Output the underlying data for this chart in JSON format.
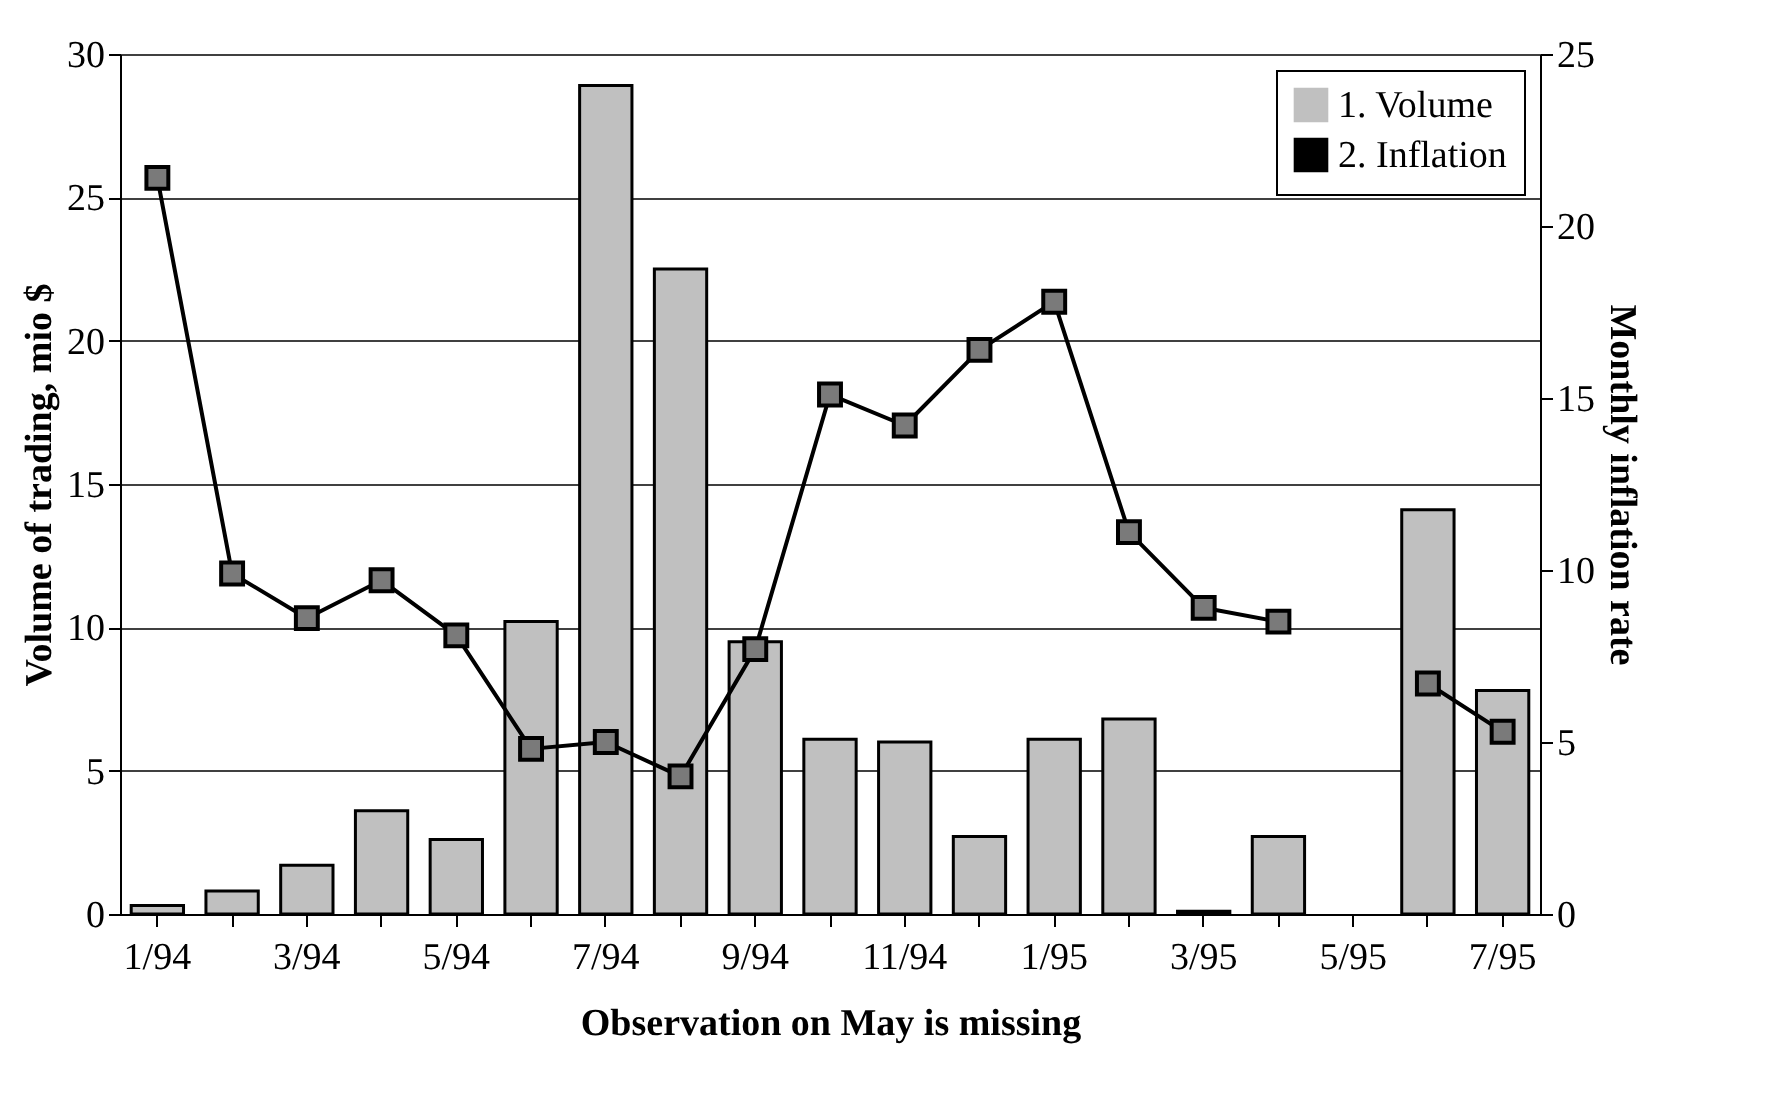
{
  "chart_data": {
    "type": "bar",
    "xlabel": "Observation on May is missing",
    "ylabel": "Volume of trading, mio $",
    "y2label": "Monthly inflation rate",
    "categories": [
      "1/94",
      null,
      "3/94",
      null,
      "5/94",
      null,
      "7/94",
      null,
      "9/94",
      null,
      "11/94",
      null,
      "1/95",
      null,
      "3/95",
      null,
      "5/95",
      null,
      "7/95"
    ],
    "series": [
      {
        "name": "1. Volume",
        "color": "#c0c0c0",
        "values": [
          0.3,
          0.8,
          1.7,
          3.6,
          2.6,
          10.2,
          28.9,
          22.5,
          9.5,
          6.1,
          6.0,
          2.7,
          6.1,
          6.8,
          0.1,
          2.7,
          null,
          14.1,
          7.8
        ]
      },
      {
        "name": "2. Inflation",
        "type": "line",
        "axis": "y2",
        "color": "#000000",
        "marker": "square",
        "values": [
          21.4,
          9.9,
          8.6,
          9.7,
          8.1,
          4.8,
          5.0,
          4.0,
          7.7,
          15.1,
          14.2,
          16.4,
          17.8,
          11.1,
          8.9,
          8.5,
          null,
          6.7,
          5.3
        ]
      }
    ],
    "ylim": [
      0,
      30
    ],
    "yticks": [
      0,
      5,
      10,
      15,
      20,
      25,
      30
    ],
    "y2lim": [
      0,
      25
    ],
    "y2ticks": [
      0,
      5,
      10,
      15,
      20,
      25
    ],
    "grid": "y",
    "legend": "top right"
  }
}
